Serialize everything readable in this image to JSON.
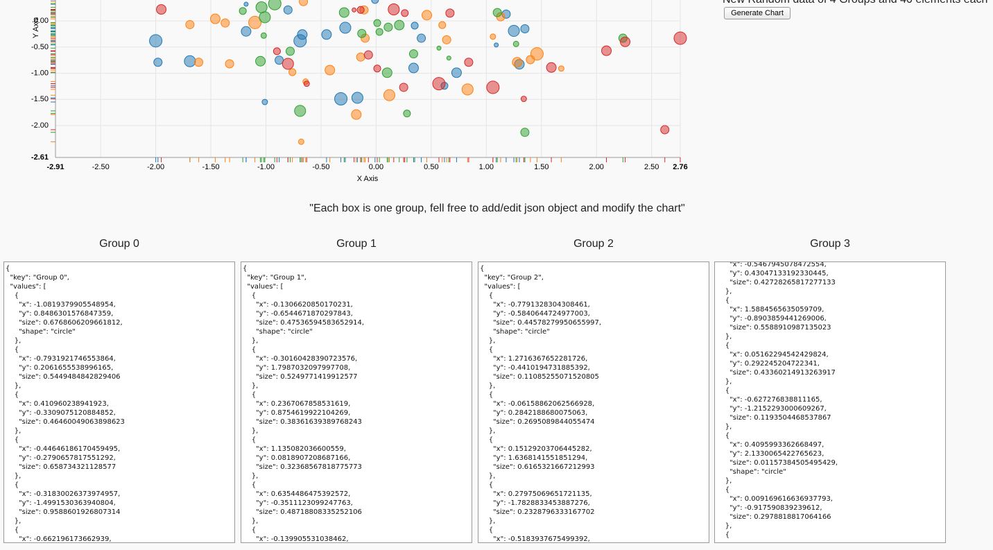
{
  "header_text": "New Random data of 4 Groups and 40 elements each",
  "button": "Generate Chart",
  "caption": "\"Each box is one group, fell free to add/edit json object and modify the chart\"",
  "groups": [
    {
      "title": "Group 0",
      "json": "{\n  \"key\": \"Group 0\",\n  \"values\": [\n    {\n      \"x\": -1.0819379905548954,\n      \"y\": 0.8486301576847359,\n      \"size\": 0.6768606209661812,\n      \"shape\": \"circle\"\n    },\n    {\n      \"x\": -0.7931921746553864,\n      \"y\": 0.2061655538996165,\n      \"size\": 0.5449484842829406\n    },\n    {\n      \"x\": 0.410960238941923,\n      \"y\": -0.3309075120884852,\n      \"size\": 0.46460049063898623\n    },\n    {\n      \"x\": -0.44646186170459495,\n      \"y\": -0.2790657817551292,\n      \"size\": 0.658734321128577\n    },\n    {\n      \"x\": -0.31830026373974957,\n      \"y\": -1.4991530363940804,\n      \"size\": 0.9588601926807314\n    },\n    {\n      \"x\": -0.662196173662939,"
    },
    {
      "title": "Group 1",
      "json": "{\n  \"key\": \"Group 1\",\n  \"values\": [\n    {\n      \"x\": -0.1306620850170231,\n      \"y\": -0.6544671870297843,\n      \"size\": 0.47536594583652914,\n      \"shape\": \"circle\"\n    },\n    {\n      \"x\": -0.30160428390723576,\n      \"y\": 1.7987032097997708,\n      \"size\": 0.5249771419912577\n    },\n    {\n      \"x\": 0.2367067858531619,\n      \"y\": 0.8754619922104269,\n      \"size\": 0.38361639389768243\n    },\n    {\n      \"x\": 1.135082036600559,\n      \"y\": 0.0818907208687166,\n      \"size\": 0.32368567818775773\n    },\n    {\n      \"x\": 0.6354486475392572,\n      \"y\": -0.3511123099247763,\n      \"size\": 0.48718808335252106\n    },\n    {\n      \"x\": -0.139905531038462,"
    },
    {
      "title": "Group 2",
      "json": "{\n  \"key\": \"Group 2\",\n  \"values\": [\n    {\n      \"x\": -0.7791328304308461,\n      \"y\": -0.5840644724977003,\n      \"size\": 0.44578279950655997,\n      \"shape\": \"circle\"\n    },\n    {\n      \"x\": 1.2716367652281726,\n      \"y\": -0.4410194731885392,\n      \"size\": 0.11085255071520805\n    },\n    {\n      \"x\": -0.06158862062566928,\n      \"y\": 0.2842188680075063,\n      \"size\": 0.2695089844055474\n    },\n    {\n      \"x\": 0.15129203706445282,\n      \"y\": 1.6368141551851294,\n      \"size\": 0.6165321667212993\n    },\n    {\n      \"x\": 0.27975069651721135,\n      \"y\": -1.7828833453887276,\n      \"size\": 0.2328796333167702\n    },\n    {\n      \"x\": -0.5183937675499392,"
    },
    {
      "title": "Group 3",
      "json": "      \"x\": -0.5467945078472554,\n      \"y\": 0.43047133192330445,\n      \"size\": 0.42728265817277133\n    },\n    {\n      \"x\": 1.5884565635059709,\n      \"y\": -0.8903859441269006,\n      \"size\": 0.5588910987135023\n    },\n    {\n      \"x\": 0.05162294542429824,\n      \"y\": 0.292245204722341,\n      \"size\": 0.43360214913263917\n    },\n    {\n      \"x\": -0.627276838811165,\n      \"y\": -1.2152293000609267,\n      \"size\": 0.1193504468537867\n    },\n    {\n      \"x\": 0.4095993362668497,\n      \"y\": 2.1330065422765623,\n      \"size\": 0.01157384505495429,\n      \"shape\": \"circle\"\n    },\n    {\n      \"x\": 0.009169616636937793,\n      \"y\": -0.917590839239612,\n      \"size\": 0.2978818817064166\n    },\n    {"
    }
  ],
  "chart_data": {
    "type": "scatter",
    "x_label": "X Axis",
    "y_label": "Y Axis",
    "xlim": [
      -2.91,
      2.76
    ],
    "ylim": [
      -2.61,
      0.4
    ],
    "grid": true,
    "xticks": [
      {
        "value": -2.91,
        "label": "-2.91"
      },
      {
        "value": -2.5,
        "label": "-2.50"
      },
      {
        "value": -2,
        "label": "-2.00"
      },
      {
        "value": -1.5,
        "label": "-1.50"
      },
      {
        "value": -1,
        "label": "-1.00"
      },
      {
        "value": -0.5,
        "label": "-0.50"
      },
      {
        "value": 0,
        "label": "0.00"
      },
      {
        "value": 0.5,
        "label": "0.50"
      },
      {
        "value": 1,
        "label": "1.00"
      },
      {
        "value": 1.5,
        "label": "1.50"
      },
      {
        "value": 2,
        "label": "2.00"
      },
      {
        "value": 2.5,
        "label": "2.50"
      },
      {
        "value": 2.76,
        "label": "2.76"
      }
    ],
    "yticks": [
      {
        "value": -2.61,
        "label": "-2.61"
      },
      {
        "value": -2,
        "label": "-2.00"
      },
      {
        "value": -1.5,
        "label": "-1.50"
      },
      {
        "value": -1,
        "label": "-1.00"
      },
      {
        "value": -0.5,
        "label": "-0.50"
      },
      {
        "value": 0,
        "label": "0.00"
      }
    ],
    "series": [
      {
        "color": "#1f77b4",
        "x": [
          -2.0,
          -1.98,
          -1.69,
          -1.18,
          -0.88,
          -0.8,
          -0.69,
          -0.67,
          -0.45,
          -0.28,
          -0.32,
          -0.17,
          -1.01,
          0.34,
          0.35,
          0.41,
          0.62,
          0.73,
          1.09,
          1.25,
          1.3,
          1.35,
          1.18,
          -1.18,
          -0.01
        ],
        "values": [
          -0.38,
          -0.79,
          -0.77,
          -0.2,
          -0.75,
          0.21,
          -0.38,
          -0.26,
          -0.26,
          -0.13,
          -1.49,
          -1.47,
          -1.55,
          -0.9,
          -0.09,
          -0.33,
          -1.24,
          -0.99,
          -0.46,
          -0.19,
          -0.83,
          -0.15,
          0.13,
          0.32,
          0.4
        ],
        "sizes": [
          0.93,
          0.5,
          0.79,
          0.64,
          0.5,
          0.5,
          0.93,
          0.64,
          0.64,
          0.79,
          0.93,
          0.79,
          0.21,
          0.64,
          0.36,
          0.5,
          0.36,
          0.64,
          0.07,
          0.79,
          0.64,
          0.5,
          0.5,
          0.07,
          0.36
        ]
      },
      {
        "color": "#ff7f0e",
        "x": [
          -1.69,
          -1.46,
          -1.37,
          -1.61,
          -1.33,
          -1.1,
          -0.76,
          -0.66,
          -0.64,
          -0.42,
          -0.18,
          -0.14,
          -0.1,
          -0.11,
          0.12,
          0.46,
          0.6,
          0.64,
          0.83,
          1.06,
          1.13,
          1.28,
          1.4,
          1.46,
          1.68,
          -0.68
        ],
        "values": [
          -0.07,
          0.04,
          -0.04,
          -0.79,
          -0.82,
          -0.03,
          -0.98,
          0.37,
          -1.16,
          -0.94,
          -1.79,
          -0.69,
          -0.33,
          0.21,
          -1.42,
          0.11,
          -0.08,
          -0.36,
          -1.31,
          -0.3,
          0.08,
          -0.79,
          -0.74,
          -0.63,
          -0.91,
          -2.31
        ],
        "sizes": [
          0.5,
          0.64,
          0.5,
          0.5,
          0.5,
          0.93,
          0.36,
          0.5,
          0.21,
          0.64,
          0.64,
          0.5,
          0.5,
          0.5,
          0.79,
          0.64,
          0.36,
          0.5,
          0.79,
          0.21,
          0.5,
          0.64,
          0.5,
          0.93,
          0.21,
          0.21
        ]
      },
      {
        "color": "#2ca02c",
        "x": [
          -1.21,
          -1.04,
          -1.01,
          -0.92,
          -1.02,
          -1.05,
          -0.78,
          -0.69,
          -0.29,
          -0.13,
          0.03,
          0.01,
          0.11,
          0.1,
          0.21,
          0.34,
          0.28,
          0.57,
          0.66,
          1.1,
          1.27,
          1.35,
          2.24
        ],
        "values": [
          0.19,
          0.26,
          0.07,
          0.33,
          -0.28,
          -0.77,
          -0.58,
          -1.72,
          0.16,
          -0.24,
          -0.21,
          -0.04,
          -0.12,
          -0.99,
          -0.08,
          -0.63,
          -1.77,
          -0.52,
          -0.71,
          0.16,
          -0.44,
          -2.13,
          -0.33
        ],
        "sizes": [
          0.36,
          0.79,
          0.79,
          0.93,
          0.21,
          0.64,
          0.5,
          0.79,
          0.64,
          0.5,
          0.36,
          0.36,
          0.5,
          0.64,
          0.64,
          0.5,
          0.36,
          0.07,
          0.07,
          0.5,
          0.21,
          0.5,
          0.5
        ]
      },
      {
        "color": "#d62728",
        "x": [
          -1.95,
          -0.9,
          -0.8,
          -0.63,
          -0.2,
          -0.14,
          -0.07,
          0.01,
          0.16,
          0.25,
          0.26,
          0.57,
          0.67,
          0.84,
          1.06,
          1.34,
          1.59,
          2.09,
          2.26,
          2.62,
          2.76
        ],
        "values": [
          0.22,
          -0.58,
          -0.82,
          -1.2,
          0.21,
          0.21,
          -0.65,
          -0.91,
          0.22,
          -1.27,
          0.15,
          -1.2,
          0.15,
          -0.79,
          -1.27,
          -1.49,
          -0.89,
          -0.57,
          -0.4,
          -2.08,
          -0.33
        ],
        "sizes": [
          0.64,
          0.36,
          0.79,
          0.21,
          0.07,
          0.36,
          0.5,
          0.36,
          0.79,
          0.5,
          0.36,
          0.93,
          0.5,
          0.5,
          0.93,
          0.21,
          0.64,
          0.64,
          0.64,
          0.5,
          0.93
        ]
      }
    ]
  }
}
